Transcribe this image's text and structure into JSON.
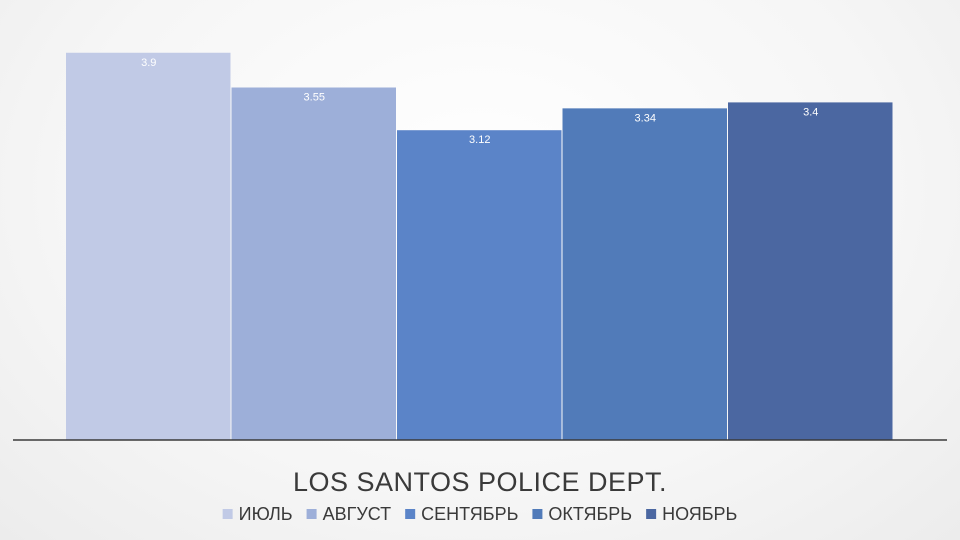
{
  "chart_data": {
    "type": "bar",
    "categories": [
      "LOS SANTOS POLICE DEPT."
    ],
    "series": [
      {
        "name": "ИЮЛЬ",
        "values": [
          3.9
        ],
        "color": "#c1cae6",
        "label": "3.9"
      },
      {
        "name": "АВГУСТ",
        "values": [
          3.55
        ],
        "color": "#9dafd9",
        "label": "3.55"
      },
      {
        "name": "СЕНТЯБРЬ",
        "values": [
          3.12
        ],
        "color": "#5b84c8",
        "label": "3.12"
      },
      {
        "name": "ОКТЯБРЬ",
        "values": [
          3.34
        ],
        "color": "#517bb9",
        "label": "3.34"
      },
      {
        "name": "НОЯБРЬ",
        "values": [
          3.4
        ],
        "color": "#4b67a1",
        "label": "3.4"
      }
    ],
    "ylim": [
      0,
      4.25
    ],
    "grid": false,
    "legend_position": "bottom",
    "title": "",
    "xlabel": "",
    "ylabel": ""
  }
}
